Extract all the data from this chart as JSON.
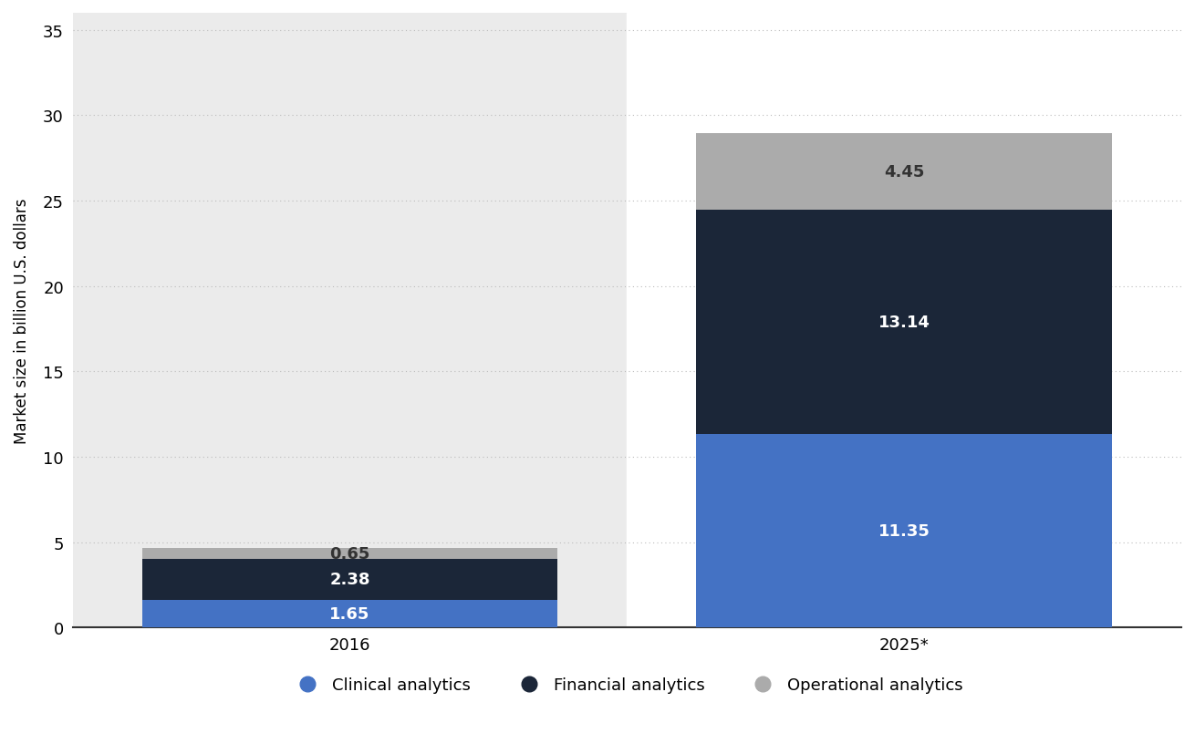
{
  "categories": [
    "2016",
    "2025*"
  ],
  "clinical_analytics": [
    1.65,
    11.35
  ],
  "financial_analytics": [
    2.38,
    13.14
  ],
  "operational_analytics": [
    0.65,
    4.45
  ],
  "colors": {
    "clinical": "#4472C4",
    "financial": "#1B2638",
    "operational": "#ABABAB"
  },
  "ylabel": "Market size in billion U.S. dollars",
  "ylim": [
    0,
    36
  ],
  "yticks": [
    0,
    5,
    10,
    15,
    20,
    25,
    30,
    35
  ],
  "background_color": "#FFFFFF",
  "left_bg_color": "#EBEBEB",
  "right_bg_color": "#FFFFFF",
  "legend_labels": [
    "Clinical analytics",
    "Financial analytics",
    "Operational analytics"
  ],
  "label_color_clinical": "#FFFFFF",
  "label_color_financial": "#FFFFFF",
  "label_color_operational": "#333333",
  "bar_width": 0.75,
  "label_fontsize": 13,
  "tick_fontsize": 13,
  "legend_fontsize": 13,
  "ylabel_fontsize": 12
}
